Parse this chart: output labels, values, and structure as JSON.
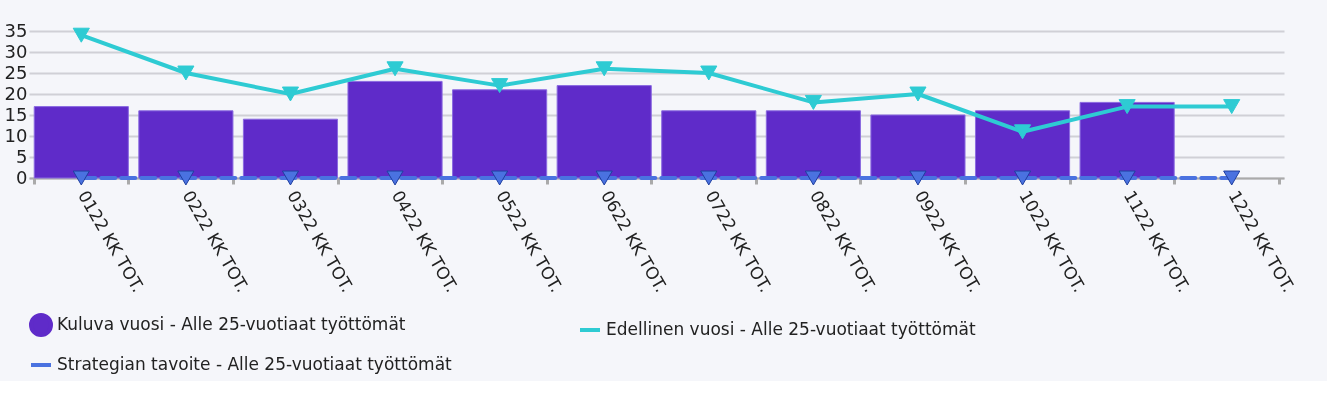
{
  "chart_data": {
    "type": "bar",
    "categories": [
      "0122 KK TOT.",
      "0222 KK TOT.",
      "0322 KK TOT.",
      "0422 KK TOT.",
      "0522 KK TOT.",
      "0622 KK TOT.",
      "0722 KK TOT.",
      "0822 KK TOT.",
      "0922 KK TOT.",
      "1022 KK TOT.",
      "1122 KK TOT.",
      "1222 KK TOT."
    ],
    "series": [
      {
        "name": "Kuluva vuosi - Alle 25-vuotiaat työttömät",
        "type": "bar",
        "color": "#5f2bc9",
        "values": [
          17,
          16,
          14,
          23,
          21,
          22,
          16,
          16,
          15,
          16,
          18,
          null
        ]
      },
      {
        "name": "Edellinen vuosi - Alle 25-vuotiaat työttömät",
        "type": "line",
        "color": "#2ecbd3",
        "marker": "triangle",
        "line_style": "solid",
        "values": [
          34,
          25,
          20,
          26,
          22,
          26,
          25,
          18,
          20,
          11,
          17,
          17
        ]
      },
      {
        "name": "Strategian tavoite - Alle 25-vuotiaat työttömät",
        "type": "line",
        "color": "#4a72e0",
        "marker": "triangle",
        "line_style": "dashed",
        "values": [
          0,
          0,
          0,
          0,
          0,
          0,
          0,
          0,
          0,
          0,
          0,
          0
        ]
      }
    ],
    "ylim": [
      0,
      35
    ],
    "yticks": [
      0,
      5,
      10,
      15,
      20,
      25,
      30,
      35
    ],
    "grid": "y",
    "legend": "bottom"
  }
}
